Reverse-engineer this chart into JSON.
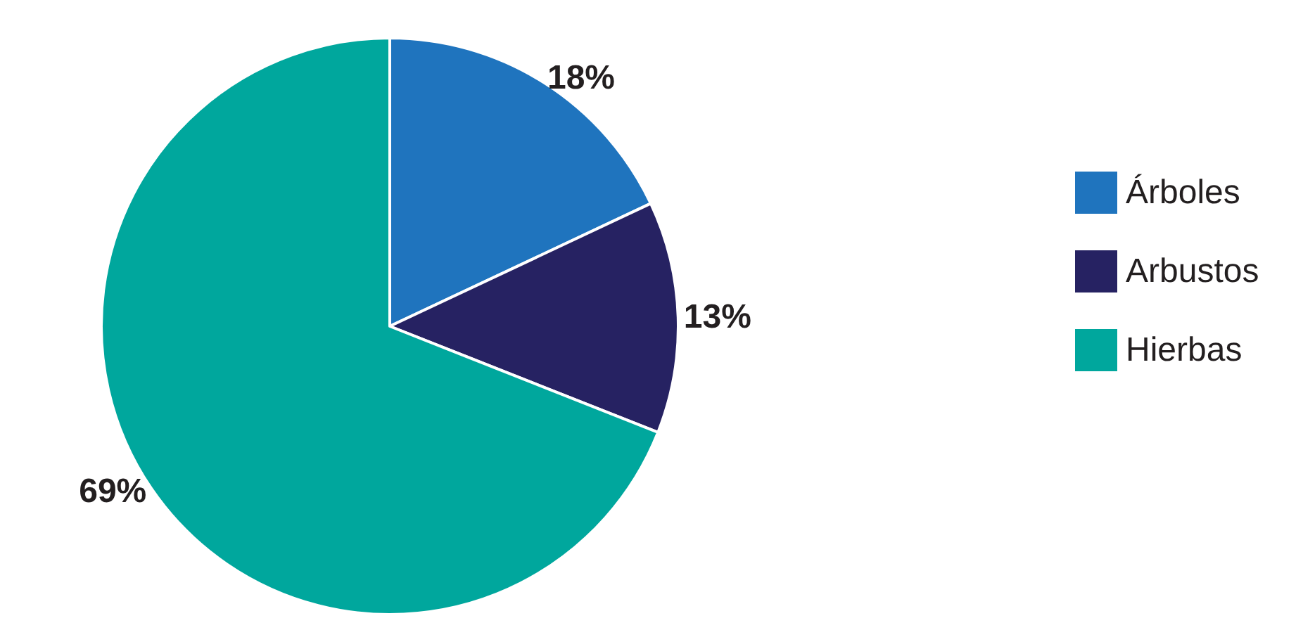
{
  "chart_data": {
    "type": "pie",
    "categories": [
      "Árboles",
      "Arbustos",
      "Hierbas"
    ],
    "values": [
      18,
      13,
      69
    ],
    "colors": [
      "#1f74be",
      "#262262",
      "#00a79d"
    ],
    "value_labels": [
      "18%",
      "13%",
      "69%"
    ],
    "legend": "right"
  }
}
